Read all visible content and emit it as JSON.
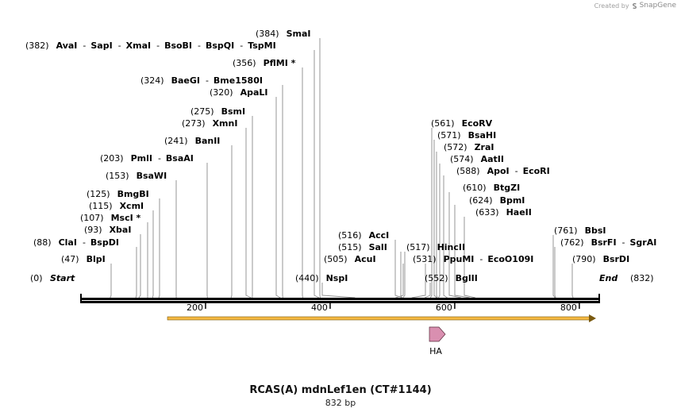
{
  "credit": {
    "prefix": "Created by",
    "brand": "SnapGene"
  },
  "title": "RCAS(A) mdnLef1en (CT#1144)",
  "subtitle": "832 bp",
  "colors": {
    "orf": "#f5b942",
    "orf_border": "#7a5a10",
    "feature": "#d98fb0",
    "feature_border": "#5a2a3a",
    "backbone": "#000000"
  },
  "sequence": {
    "length": 832,
    "ticks": [
      200,
      400,
      600,
      800
    ]
  },
  "ends": {
    "start": {
      "pos": "(0)",
      "label": "Start"
    },
    "end": {
      "pos": "(832)",
      "label": "End"
    }
  },
  "feature": {
    "label": "HA",
    "icon": "arrow-right"
  },
  "sites": [
    {
      "pos": "(384)",
      "names": [
        "SmaI"
      ],
      "site": 384
    },
    {
      "pos": "(382)",
      "names": [
        "AvaI",
        "SapI",
        "XmaI",
        "BsoBI",
        "BspQI",
        "TspMI"
      ],
      "site": 382
    },
    {
      "pos": "(356)",
      "names": [
        "PflMI *"
      ],
      "site": 356
    },
    {
      "pos": "(324)",
      "names": [
        "BaeGI",
        "Bme1580I"
      ],
      "site": 324
    },
    {
      "pos": "(320)",
      "names": [
        "ApaLI"
      ],
      "site": 320
    },
    {
      "pos": "(275)",
      "names": [
        "BsmI"
      ],
      "site": 275
    },
    {
      "pos": "(273)",
      "names": [
        "XmnI"
      ],
      "site": 273
    },
    {
      "pos": "(241)",
      "names": [
        "BanII"
      ],
      "site": 241
    },
    {
      "pos": "(203)",
      "names": [
        "PmlI",
        "BsaAI"
      ],
      "site": 203
    },
    {
      "pos": "(153)",
      "names": [
        "BsaWI"
      ],
      "site": 153
    },
    {
      "pos": "(125)",
      "names": [
        "BmgBI"
      ],
      "site": 125
    },
    {
      "pos": "(115)",
      "names": [
        "XcmI"
      ],
      "site": 115
    },
    {
      "pos": "(107)",
      "names": [
        "MscI *"
      ],
      "site": 107
    },
    {
      "pos": "(93)",
      "names": [
        "XbaI"
      ],
      "site": 93
    },
    {
      "pos": "(88)",
      "names": [
        "ClaI",
        "BspDI"
      ],
      "site": 88
    },
    {
      "pos": "(47)",
      "names": [
        "BlpI"
      ],
      "site": 47
    },
    {
      "pos": "(440)",
      "names": [
        "NspI"
      ],
      "site": 440
    },
    {
      "pos": "(516)",
      "names": [
        "AccI"
      ],
      "site": 516
    },
    {
      "pos": "(515)",
      "names": [
        "SalI"
      ],
      "site": 515
    },
    {
      "pos": "(505)",
      "names": [
        "AcuI"
      ],
      "site": 505
    },
    {
      "pos": "(517)",
      "names": [
        "HincII"
      ],
      "site": 517
    },
    {
      "pos": "(531)",
      "names": [
        "PpuMI",
        "EcoO109I"
      ],
      "site": 531
    },
    {
      "pos": "(552)",
      "names": [
        "BglII"
      ],
      "site": 552
    },
    {
      "pos": "(561)",
      "names": [
        "EcoRV"
      ],
      "site": 561
    },
    {
      "pos": "(571)",
      "names": [
        "BsaHI"
      ],
      "site": 571
    },
    {
      "pos": "(572)",
      "names": [
        "ZraI"
      ],
      "site": 572
    },
    {
      "pos": "(574)",
      "names": [
        "AatII"
      ],
      "site": 574
    },
    {
      "pos": "(588)",
      "names": [
        "ApoI",
        "EcoRI"
      ],
      "site": 588
    },
    {
      "pos": "(610)",
      "names": [
        "BtgZI"
      ],
      "site": 610
    },
    {
      "pos": "(624)",
      "names": [
        "BpmI"
      ],
      "site": 624
    },
    {
      "pos": "(633)",
      "names": [
        "HaeII"
      ],
      "site": 633
    },
    {
      "pos": "(761)",
      "names": [
        "BbsI"
      ],
      "site": 761
    },
    {
      "pos": "(762)",
      "names": [
        "BsrFI",
        "SgrAI"
      ],
      "site": 762
    },
    {
      "pos": "(790)",
      "names": [
        "BsrDI"
      ],
      "site": 790
    }
  ]
}
